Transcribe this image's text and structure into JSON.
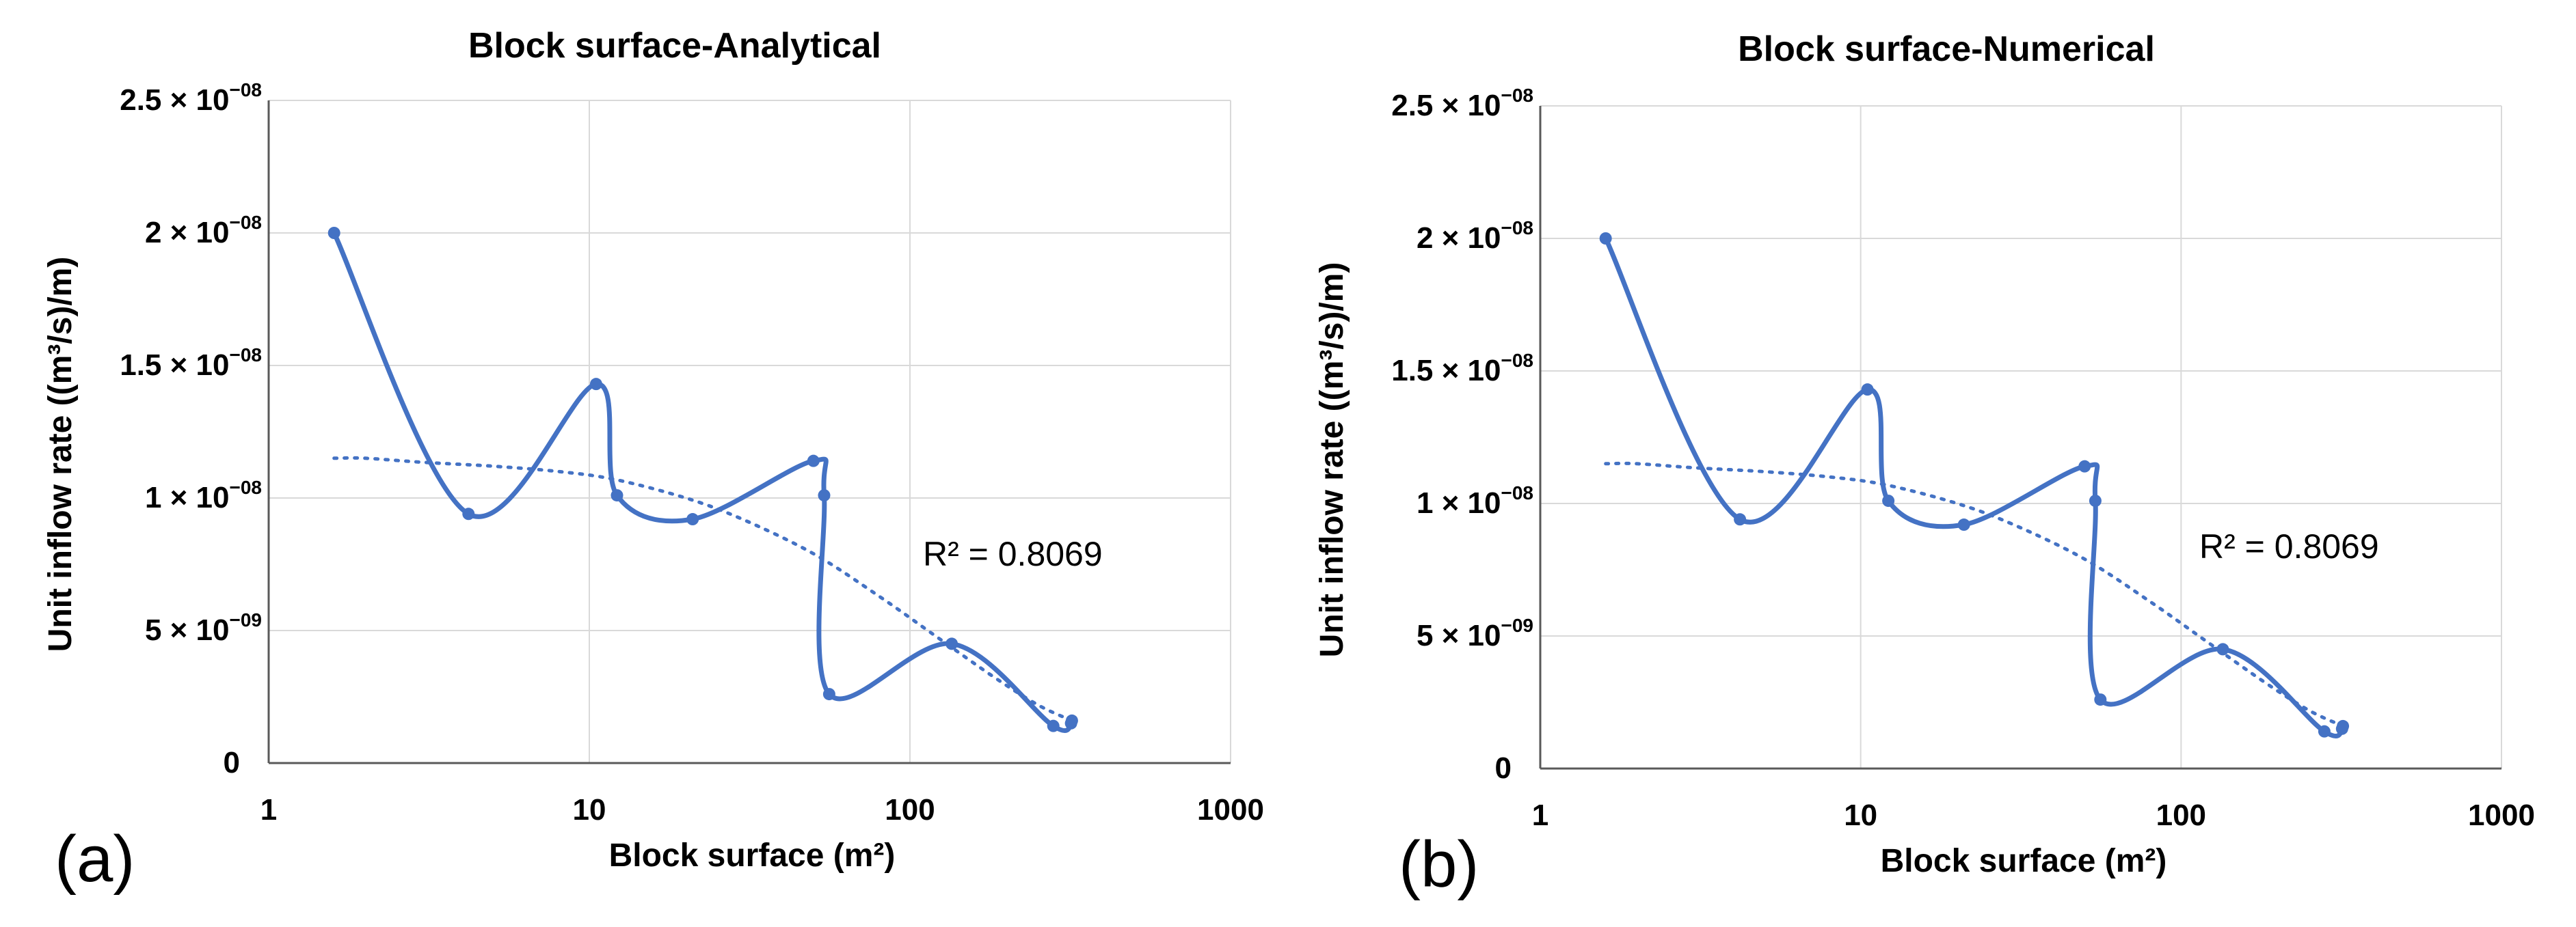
{
  "colors": {
    "series": "#4472c4",
    "trend": "#4472c4"
  },
  "chart_data": [
    {
      "type": "line",
      "panel_label": "(a)",
      "title": "Block surface-Analytical",
      "xlabel": "Block surface (m²)",
      "ylabel": "Unit inflow rate ((m³/s)/m)",
      "xscale": "log",
      "xlim": [
        1,
        1000
      ],
      "ylim": [
        0,
        2.5e-08
      ],
      "grid": true,
      "x_ticks": [
        {
          "value": 1,
          "label": "1"
        },
        {
          "value": 10,
          "label": "10"
        },
        {
          "value": 100,
          "label": "100"
        },
        {
          "value": 1000,
          "label": "1000"
        }
      ],
      "y_ticks": [
        {
          "value": 0,
          "mantissa": "0",
          "exponent": ""
        },
        {
          "value": 5e-09,
          "mantissa": "5 × 10",
          "exponent": "−09"
        },
        {
          "value": 1e-08,
          "mantissa": "1 × 10",
          "exponent": "−08"
        },
        {
          "value": 1.5e-08,
          "mantissa": "1.5 × 10",
          "exponent": "−08"
        },
        {
          "value": 2e-08,
          "mantissa": "2 × 10",
          "exponent": "−08"
        },
        {
          "value": 2.5e-08,
          "mantissa": "2.5 × 10",
          "exponent": "−08"
        }
      ],
      "series": [
        {
          "name": "Unit inflow rate",
          "x": [
            1.6,
            4.2,
            10.5,
            12.2,
            21,
            50,
            54,
            56,
            135,
            280,
            320,
            318
          ],
          "y": [
            2e-08,
            9.4e-09,
            1.43e-08,
            1.01e-08,
            9.2e-09,
            1.14e-08,
            1.01e-08,
            2.6e-09,
            4.5e-09,
            1.4e-09,
            1.6e-09,
            1.5e-09
          ]
        }
      ],
      "trendline": {
        "type": "polynomial",
        "x": [
          1.6,
          2,
          3,
          5,
          8,
          12,
          20,
          30,
          50,
          80,
          120,
          180,
          250,
          320
        ],
        "y": [
          1.15e-08,
          1.15e-08,
          1.135e-08,
          1.12e-08,
          1.1e-08,
          1.07e-08,
          1e-08,
          9.2e-09,
          7.9e-09,
          6.3e-09,
          4.8e-09,
          3.3e-09,
          2.2e-09,
          1.6e-09
        ],
        "r2_label": "R² = 0.8069"
      }
    },
    {
      "type": "line",
      "panel_label": "(b)",
      "title": "Block surface-Numerical",
      "xlabel": "Block surface (m²)",
      "ylabel": "Unit inflow rate ((m³/s)/m)",
      "xscale": "log",
      "xlim": [
        1,
        1000
      ],
      "ylim": [
        0,
        2.5e-08
      ],
      "grid": true,
      "x_ticks": [
        {
          "value": 1,
          "label": "1"
        },
        {
          "value": 10,
          "label": "10"
        },
        {
          "value": 100,
          "label": "100"
        },
        {
          "value": 1000,
          "label": "1000"
        }
      ],
      "y_ticks": [
        {
          "value": 0,
          "mantissa": "0",
          "exponent": ""
        },
        {
          "value": 5e-09,
          "mantissa": "5 × 10",
          "exponent": "−09"
        },
        {
          "value": 1e-08,
          "mantissa": "1 × 10",
          "exponent": "−08"
        },
        {
          "value": 1.5e-08,
          "mantissa": "1.5 × 10",
          "exponent": "−08"
        },
        {
          "value": 2e-08,
          "mantissa": "2 × 10",
          "exponent": "−08"
        },
        {
          "value": 2.5e-08,
          "mantissa": "2.5 × 10",
          "exponent": "−08"
        }
      ],
      "series": [
        {
          "name": "Unit inflow rate",
          "x": [
            1.6,
            4.2,
            10.5,
            12.2,
            21,
            50,
            54,
            56,
            135,
            280,
            320,
            318
          ],
          "y": [
            2e-08,
            9.4e-09,
            1.43e-08,
            1.01e-08,
            9.2e-09,
            1.14e-08,
            1.01e-08,
            2.6e-09,
            4.5e-09,
            1.4e-09,
            1.6e-09,
            1.5e-09
          ]
        }
      ],
      "trendline": {
        "type": "polynomial",
        "x": [
          1.6,
          2,
          3,
          5,
          8,
          12,
          20,
          30,
          50,
          80,
          120,
          180,
          250,
          320
        ],
        "y": [
          1.15e-08,
          1.15e-08,
          1.135e-08,
          1.12e-08,
          1.1e-08,
          1.07e-08,
          1e-08,
          9.2e-09,
          7.9e-09,
          6.3e-09,
          4.8e-09,
          3.3e-09,
          2.2e-09,
          1.6e-09
        ],
        "r2_label": "R² = 0.8069"
      }
    }
  ]
}
